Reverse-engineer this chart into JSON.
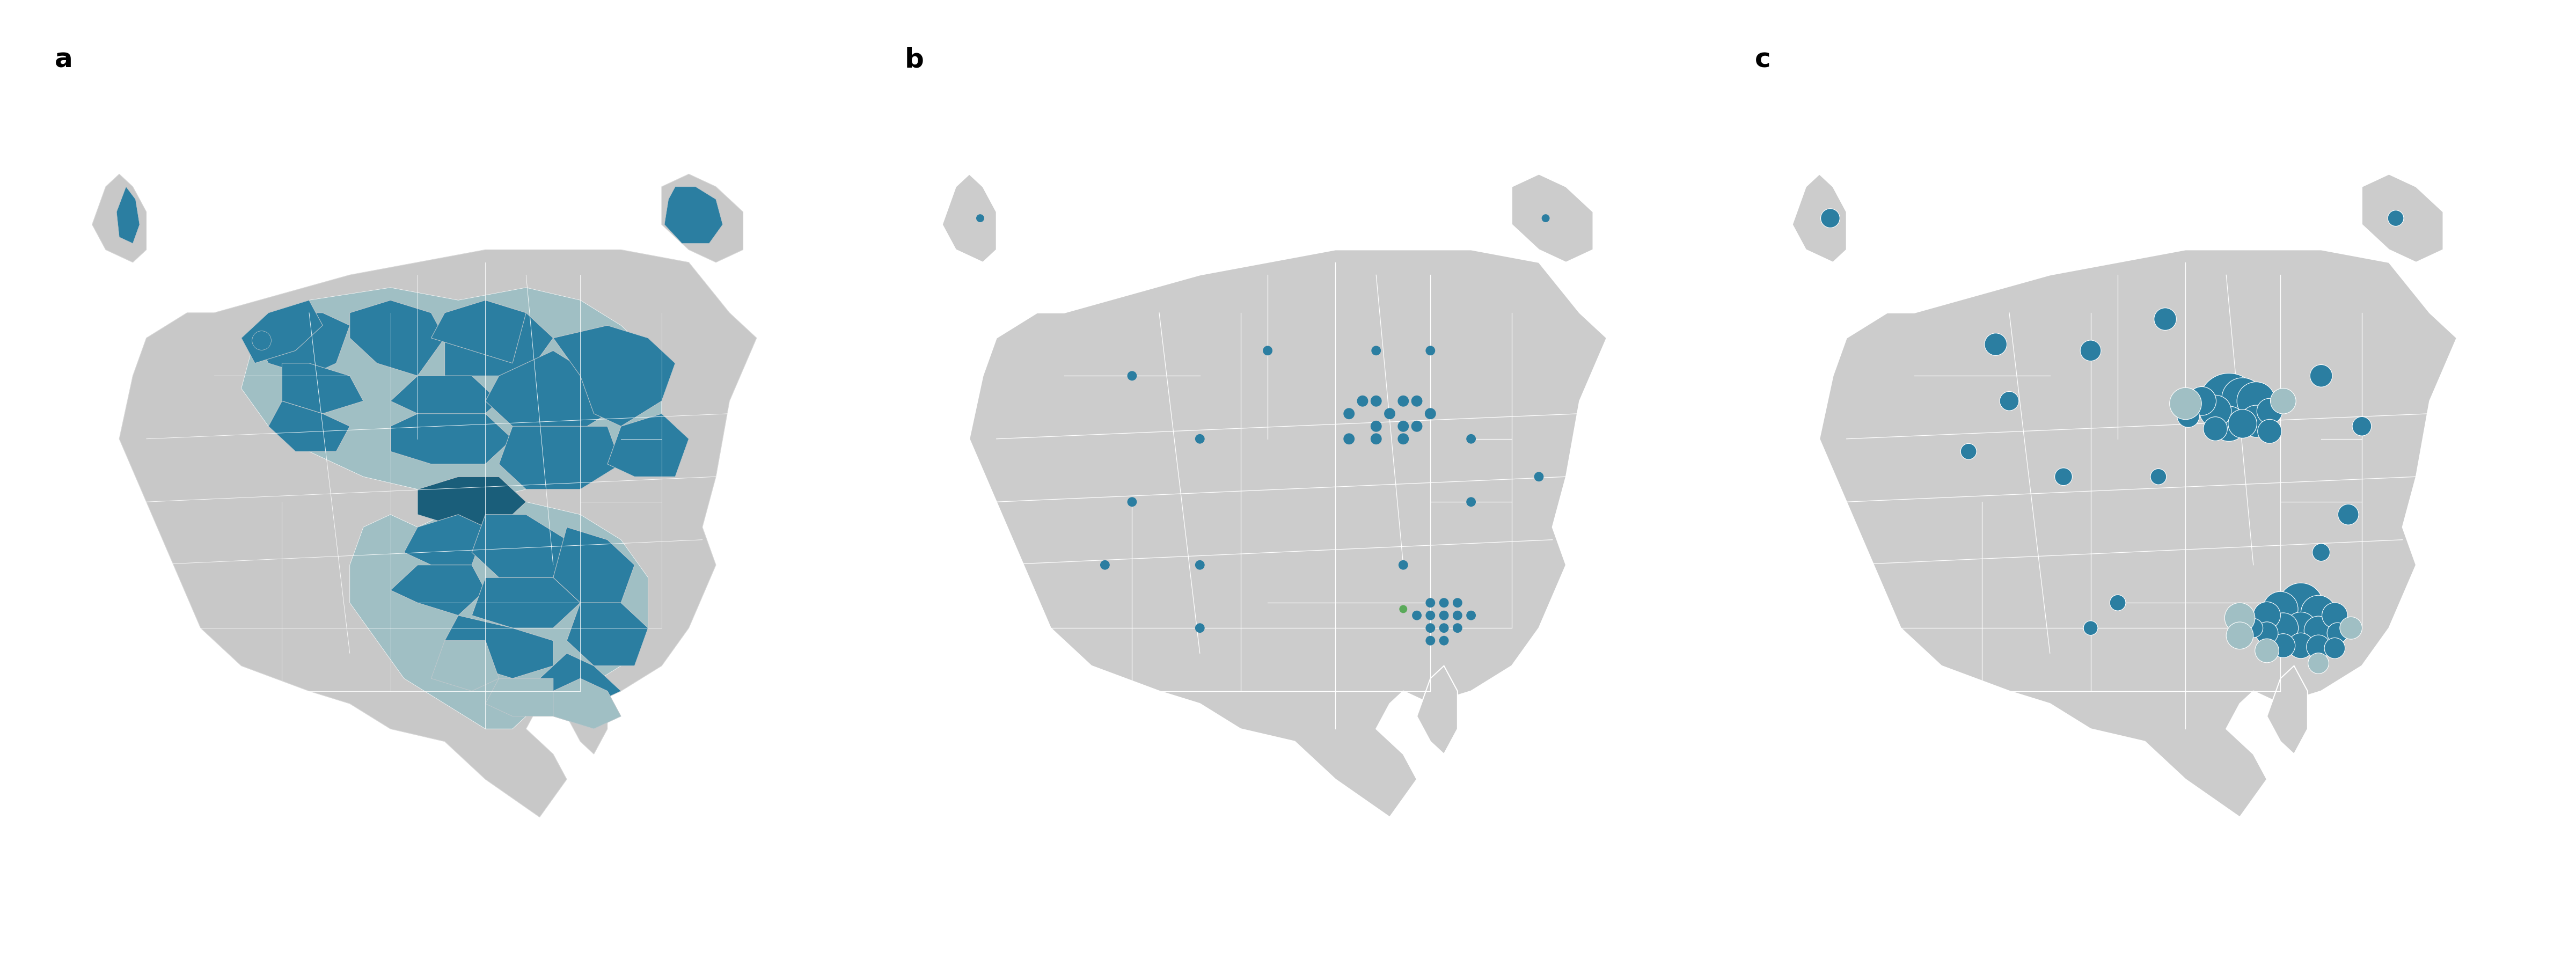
{
  "figure_width": 48.0,
  "figure_height": 18.0,
  "bg_color": "#ffffff",
  "map_fill": "#cccccc",
  "map_edge": "#ffffff",
  "dark_blue": "#2b7ea1",
  "teal_light": "#a0bfc4",
  "teal_med": "#6baab0",
  "dark_blue2": "#1a5e7a",
  "label_fontsize": 36,
  "panel_labels": [
    "a",
    "b",
    "c"
  ]
}
